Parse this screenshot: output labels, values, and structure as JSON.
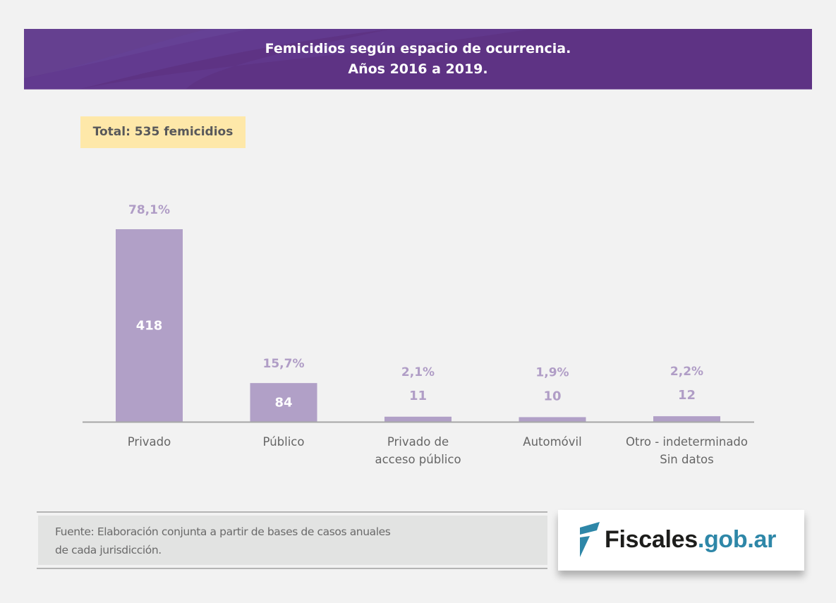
{
  "header": {
    "title_line1": "Femicidios según espacio de ocurrencia.",
    "title_line2": "Años 2016 a 2019.",
    "background_color": "#5e3384"
  },
  "total_badge": {
    "label": "Total: 535 femicidios"
  },
  "chart_data": {
    "type": "bar",
    "title": "Femicidios según espacio de ocurrencia. Años 2016 a 2019.",
    "subtitle": "Total: 535 femicidios",
    "categories": [
      [
        "Privado"
      ],
      [
        "Público"
      ],
      [
        "Privado de",
        "acceso público"
      ],
      [
        "Automóvil"
      ],
      [
        "Otro - indeterminado",
        "Sin datos"
      ]
    ],
    "values": [
      418,
      84,
      11,
      10,
      12
    ],
    "percent_labels": [
      "78,1%",
      "15,7%",
      "2,1%",
      "1,9%",
      "2,2%"
    ],
    "value_labels": [
      "418",
      "84",
      "11",
      "10",
      "12"
    ],
    "xlabel": "",
    "ylabel": "",
    "ylim": [
      0,
      418
    ],
    "grid": false,
    "legend": "none",
    "bar_color": "#b1a0c7",
    "label_color": "#b09dc6"
  },
  "source": {
    "line1": "Fuente: Elaboración conjunta a partir de bases de casos anuales",
    "line2": "de cada jurisdicción."
  },
  "logo": {
    "icon": "fiscales-f-logo-icon",
    "text_dark": "Fiscales",
    "text_blue": ".gob.ar"
  }
}
